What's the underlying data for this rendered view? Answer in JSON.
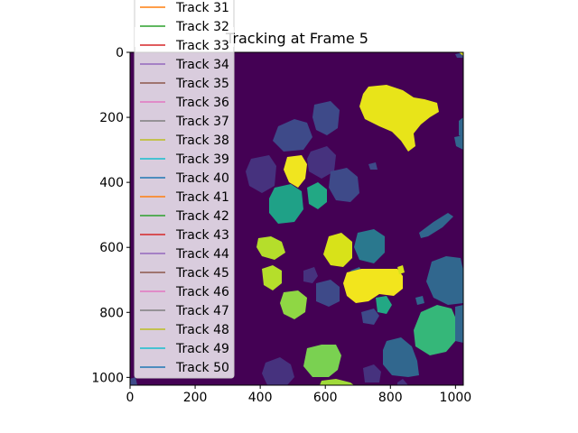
{
  "chart_data": {
    "type": "image",
    "title": "Tracking at Frame 5",
    "xlabel": "",
    "ylabel": "",
    "xlim": [
      0,
      1024
    ],
    "ylim": [
      1024,
      0
    ],
    "xticks": [
      0,
      200,
      400,
      600,
      800,
      1000
    ],
    "yticks": [
      0,
      200,
      400,
      600,
      800,
      1000
    ],
    "grid": false,
    "background_color": "#440154",
    "legend": {
      "placement": "upper-left",
      "entries": [
        {
          "label": "Track 31",
          "color": "#ff7f0e"
        },
        {
          "label": "Track 32",
          "color": "#2ca02c"
        },
        {
          "label": "Track 33",
          "color": "#d62728"
        },
        {
          "label": "Track 34",
          "color": "#9467bd"
        },
        {
          "label": "Track 35",
          "color": "#8c564b"
        },
        {
          "label": "Track 36",
          "color": "#e377c2"
        },
        {
          "label": "Track 37",
          "color": "#7f7f7f"
        },
        {
          "label": "Track 38",
          "color": "#bcbd22"
        },
        {
          "label": "Track 39",
          "color": "#17becf"
        },
        {
          "label": "Track 40",
          "color": "#1f77b4"
        },
        {
          "label": "Track 41",
          "color": "#ff7f0e"
        },
        {
          "label": "Track 42",
          "color": "#2ca02c"
        },
        {
          "label": "Track 43",
          "color": "#d62728"
        },
        {
          "label": "Track 44",
          "color": "#9467bd"
        },
        {
          "label": "Track 45",
          "color": "#8c564b"
        },
        {
          "label": "Track 46",
          "color": "#e377c2"
        },
        {
          "label": "Track 47",
          "color": "#7f7f7f"
        },
        {
          "label": "Track 48",
          "color": "#bcbd22"
        },
        {
          "label": "Track 49",
          "color": "#17becf"
        },
        {
          "label": "Track 50",
          "color": "#1f77b4"
        }
      ]
    }
  }
}
